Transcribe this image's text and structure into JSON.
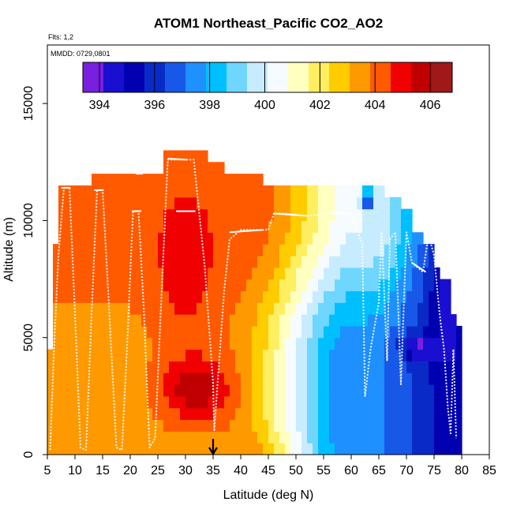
{
  "chart_data": {
    "type": "heatmap",
    "title": "ATOM1 Northeast_Pacific CO2_AO2",
    "subtitle_flights": "Flts: 1,2",
    "subtitle_dates": "MMDD: 0729,0801",
    "xlabel": "Latitude (deg N)",
    "ylabel": "Altitude (m)",
    "xlim": [
      5,
      85
    ],
    "ylim": [
      0,
      17500
    ],
    "x_ticks": [
      "5",
      "10",
      "15",
      "20",
      "25",
      "30",
      "35",
      "40",
      "45",
      "50",
      "55",
      "60",
      "65",
      "70",
      "75",
      "80",
      "85"
    ],
    "y_ticks": [
      "0",
      "5000",
      "10000",
      "15000"
    ],
    "y_tick_values": [
      0,
      5000,
      10000,
      15000
    ],
    "x_tick_values": [
      5,
      10,
      15,
      20,
      25,
      30,
      35,
      40,
      45,
      50,
      55,
      60,
      65,
      70,
      75,
      80,
      85
    ],
    "colorbar": {
      "range": [
        393.4,
        406.8
      ],
      "tick_values": [
        394,
        396,
        398,
        400,
        402,
        404,
        406
      ],
      "tick_labels": [
        "394",
        "396",
        "398",
        "400",
        "402",
        "404",
        "406"
      ],
      "colors": [
        "#7a1fe0",
        "#1a0fd0",
        "#0000b0",
        "#0a2ac8",
        "#1858e8",
        "#1e90ff",
        "#00bfff",
        "#6fd6ff",
        "#c8ecff",
        "#f5fbff",
        "#ffffc0",
        "#ffee60",
        "#ffcc00",
        "#ff9900",
        "#ff5a00",
        "#f00000",
        "#c00000",
        "#a01818"
      ]
    },
    "marker": {
      "latitude": 35,
      "label": "arrow"
    },
    "cells_note": "CO2 mixing ratio (ppm) binned by latitude and altitude",
    "flight_track": [
      [
        5.5,
        200
      ],
      [
        6.2,
        4500
      ],
      [
        7,
        8500
      ],
      [
        8,
        11400
      ],
      [
        9,
        11400
      ],
      [
        10,
        6000
      ],
      [
        11,
        300
      ],
      [
        12,
        200
      ],
      [
        13,
        6000
      ],
      [
        14,
        11300
      ],
      [
        15,
        11300
      ],
      [
        16,
        7000
      ],
      [
        17.5,
        300
      ],
      [
        18.5,
        200
      ],
      [
        19.5,
        5000
      ],
      [
        20.5,
        10400
      ],
      [
        21.5,
        10400
      ],
      [
        22.5,
        6000
      ],
      [
        23.5,
        300
      ],
      [
        24.5,
        700
      ],
      [
        25.5,
        6000
      ],
      [
        26.8,
        12600
      ],
      [
        28,
        12600
      ],
      [
        29,
        12600
      ],
      [
        31.5,
        12600
      ],
      [
        33.5,
        8000
      ],
      [
        35,
        3000
      ],
      [
        35.2,
        1000
      ],
      [
        37,
        7000
      ],
      [
        38,
        9200
      ],
      [
        40,
        9600
      ],
      [
        42,
        9600
      ],
      [
        44,
        9600
      ],
      [
        45,
        9600
      ],
      [
        46,
        10300
      ],
      [
        48,
        10300
      ],
      [
        52,
        10200
      ],
      [
        56,
        10300
      ],
      [
        60,
        10300
      ],
      [
        62,
        9000
      ],
      [
        62.5,
        2500
      ],
      [
        63.5,
        4500
      ],
      [
        65,
        6500
      ],
      [
        65.5,
        9500
      ],
      [
        66.5,
        4000
      ],
      [
        67,
        9200
      ],
      [
        68,
        9500
      ],
      [
        69,
        3000
      ],
      [
        70,
        9500
      ],
      [
        71,
        8200
      ],
      [
        72,
        8000
      ],
      [
        73,
        7800
      ],
      [
        74,
        9400
      ],
      [
        75,
        8500
      ],
      [
        76,
        6000
      ],
      [
        76.8,
        4500
      ],
      [
        77.5,
        2000
      ],
      [
        78,
        900
      ],
      [
        78.5,
        4500
      ],
      [
        79,
        700
      ]
    ]
  }
}
